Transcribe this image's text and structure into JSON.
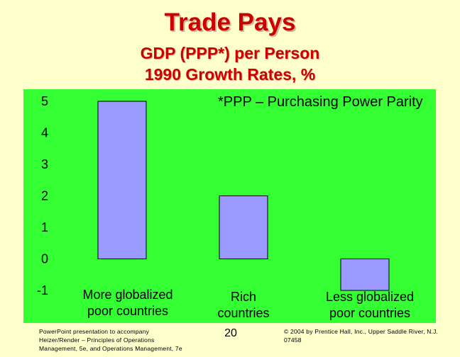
{
  "slide": {
    "title": "Trade Pays",
    "subtitle_line1": "GDP (PPP*) per Person",
    "subtitle_line2": "1990 Growth Rates, %",
    "footer_left": "PowerPoint presentation to accompany Heizer/Render – Principles of Operations Management, 5e, and Operations Management, 7e",
    "page_number": "20",
    "footer_right": "© 2004 by Prentice Hall, Inc., Upper Saddle River, N.J. 07458"
  },
  "colors": {
    "plot_background": "#33FF33",
    "bar_fill": "#9999FF",
    "bar_stroke": "#000000",
    "title": "#CC0000",
    "page_background": "#FFFFCC"
  },
  "chart_data": {
    "type": "bar",
    "title": "",
    "xlabel": "",
    "ylabel": "",
    "categories": [
      [
        "More globalized",
        "poor countries"
      ],
      [
        "Rich",
        "countries"
      ],
      [
        "Less globalized",
        "poor countries"
      ]
    ],
    "values": [
      5,
      2,
      -1
    ],
    "ylim": [
      -1,
      5
    ],
    "yticks": [
      -1,
      0,
      1,
      2,
      3,
      4,
      5
    ],
    "grid": false,
    "annotation": "*PPP – Purchasing Power Parity"
  }
}
